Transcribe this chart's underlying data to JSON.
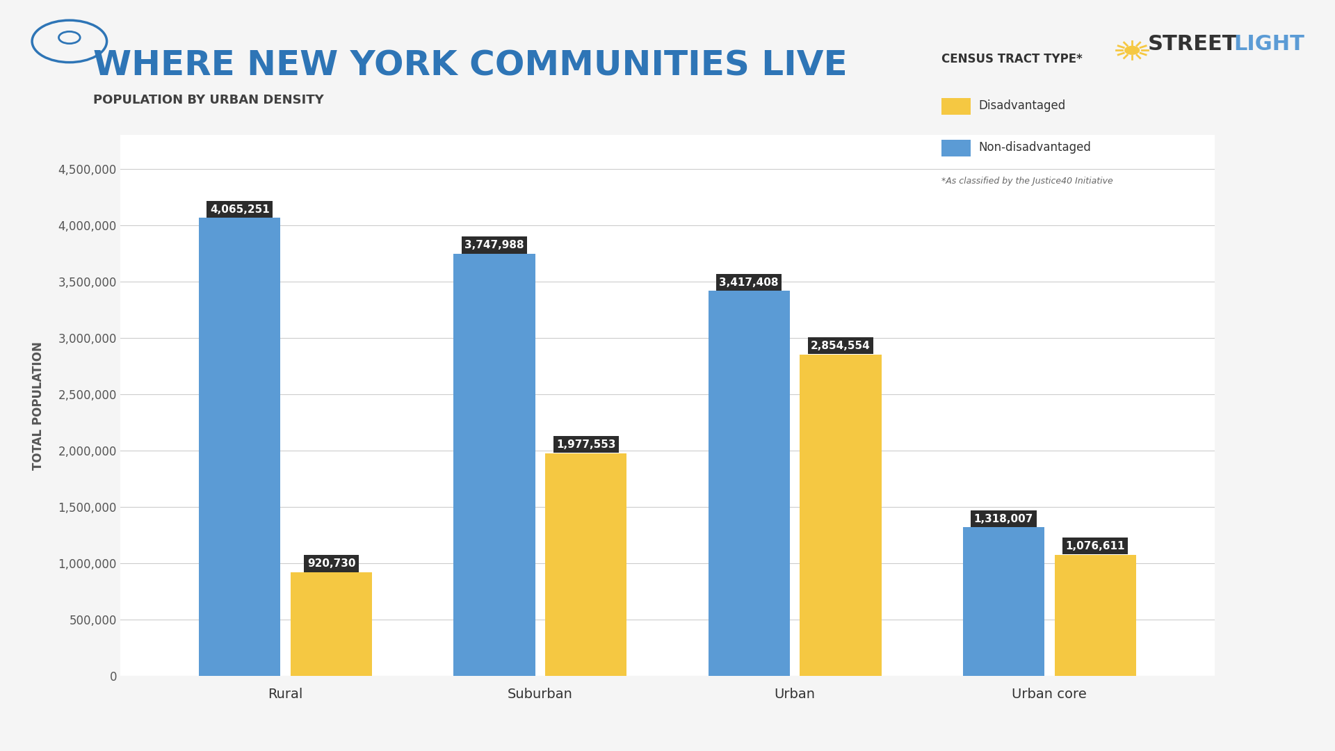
{
  "title": "WHERE NEW YORK COMMUNITIES LIVE",
  "subtitle": "POPULATION BY URBAN DENSITY",
  "categories": [
    "Rural",
    "Suburban",
    "Urban",
    "Urban core"
  ],
  "non_disadvantaged": [
    4065251,
    3747988,
    3417408,
    1318007
  ],
  "disadvantaged": [
    920730,
    1977553,
    2854554,
    1076611
  ],
  "bar_color_blue": "#5B9BD5",
  "bar_color_yellow": "#F5C842",
  "label_bg_color": "#2C2C2C",
  "label_text_color": "#FFFFFF",
  "title_color": "#2E75B6",
  "subtitle_color": "#404040",
  "background_color": "#F5F5F5",
  "plot_bg_color": "#FFFFFF",
  "grid_color": "#CCCCCC",
  "axis_label": "TOTAL POPULATION",
  "legend_title": "CENSUS TRACT TYPE*",
  "legend_items": [
    "Disadvantaged",
    "Non-disadvantaged"
  ],
  "legend_note": "*As classified by the Justice40 Initiative",
  "ylabel_color": "#555555",
  "streetlight_color_dark": "#2E3192",
  "streetlight_color_light": "#F5A623"
}
